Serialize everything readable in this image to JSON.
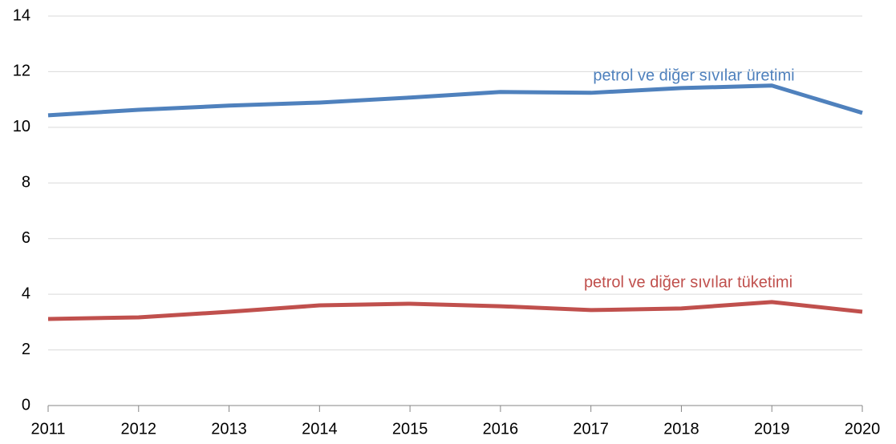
{
  "chart_data": {
    "type": "line",
    "x": [
      2011,
      2012,
      2013,
      2014,
      2015,
      2016,
      2017,
      2018,
      2019,
      2020
    ],
    "series": [
      {
        "name": "petrol ve diğer sıvılar üretimi",
        "color": "#4f81bd",
        "values": [
          10.43,
          10.63,
          10.78,
          10.89,
          11.07,
          11.27,
          11.24,
          11.41,
          11.5,
          10.52
        ]
      },
      {
        "name": "petrol ve diğer sıvılar tüketimi",
        "color": "#c0504d",
        "values": [
          3.11,
          3.17,
          3.37,
          3.6,
          3.66,
          3.57,
          3.43,
          3.49,
          3.72,
          3.37
        ]
      }
    ],
    "xlim": [
      2011,
      2020
    ],
    "xticks": [
      2011,
      2012,
      2013,
      2014,
      2015,
      2016,
      2017,
      2018,
      2019,
      2020
    ],
    "ylim": [
      0,
      14
    ],
    "yticks": [
      0,
      2,
      4,
      6,
      8,
      10,
      12,
      14
    ],
    "grid": true
  }
}
